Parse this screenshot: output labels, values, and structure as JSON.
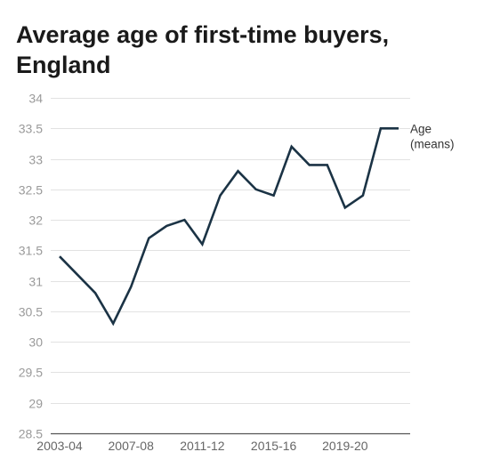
{
  "chart_title": "Average age of first-time buyers, England",
  "chart_data": {
    "type": "line",
    "title": "Average age of first-time buyers, England",
    "xlabel": "",
    "ylabel": "",
    "x": [
      "2003-04",
      "2004-05",
      "2005-06",
      "2006-07",
      "2007-08",
      "2008-09",
      "2009-10",
      "2010-11",
      "2011-12",
      "2012-13",
      "2013-14",
      "2014-15",
      "2015-16",
      "2016-17",
      "2017-18",
      "2018-19",
      "2019-20",
      "2020-21",
      "2021-22",
      "2022-23"
    ],
    "x_tick_labels": [
      "2003-04",
      "2007-08",
      "2011-12",
      "2015-16",
      "2019-20"
    ],
    "y_ticks": [
      "28.5",
      "29",
      "29.5",
      "30",
      "30.5",
      "31",
      "31.5",
      "32",
      "32.5",
      "33",
      "33.5",
      "34"
    ],
    "ylim": [
      28.5,
      34
    ],
    "grid": true,
    "series": [
      {
        "name": "Age (means)",
        "label_lines": [
          "Age",
          "(means)"
        ],
        "color": "#1b3345",
        "values": [
          31.4,
          31.1,
          30.8,
          30.3,
          30.9,
          31.7,
          31.9,
          32.0,
          31.6,
          32.4,
          32.8,
          32.5,
          32.4,
          33.2,
          32.9,
          32.9,
          32.2,
          32.4,
          33.5,
          33.5
        ]
      }
    ]
  }
}
